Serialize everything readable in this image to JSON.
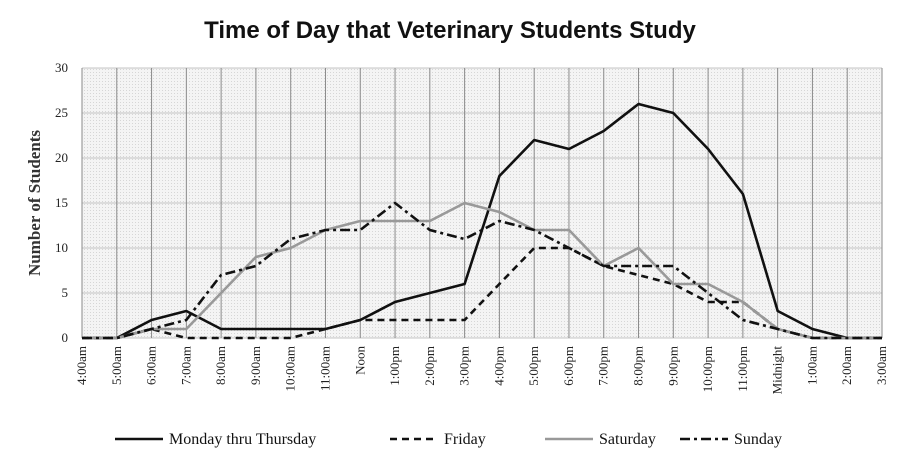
{
  "chart_data": {
    "type": "line",
    "title": "Time of Day that Veterinary Students Study",
    "xlabel": "",
    "ylabel": "Number of Students",
    "ylim": [
      0,
      30
    ],
    "yticks": [
      0,
      5,
      10,
      15,
      20,
      25,
      30
    ],
    "grid": true,
    "legend_position": "bottom",
    "x": [
      "4:00am",
      "5:00am",
      "6:00am",
      "7:00am",
      "8:00am",
      "9:00am",
      "10:00am",
      "11:00am",
      "Noon",
      "1:00pm",
      "2:00pm",
      "3:00pm",
      "4:00pm",
      "5:00pm",
      "6:00pm",
      "7:00pm",
      "8:00pm",
      "9:00pm",
      "10:00pm",
      "11:00pm",
      "Midnight",
      "1:00am",
      "2:00am",
      "3:00am"
    ],
    "series": [
      {
        "name": "Monday thru Thursday",
        "color": "#111111",
        "style": "solid",
        "values": [
          0,
          0,
          2,
          3,
          1,
          1,
          1,
          1,
          2,
          4,
          5,
          6,
          18,
          22,
          21,
          23,
          26,
          25,
          21,
          16,
          3,
          1,
          0,
          0
        ]
      },
      {
        "name": "Friday",
        "color": "#111111",
        "style": "dashed",
        "values": [
          0,
          0,
          1,
          0,
          0,
          0,
          0,
          1,
          2,
          2,
          2,
          2,
          6,
          10,
          10,
          8,
          7,
          6,
          4,
          4,
          1,
          0,
          0,
          0
        ]
      },
      {
        "name": "Saturday",
        "color": "#999999",
        "style": "solid",
        "values": [
          0,
          0,
          1,
          1,
          5,
          9,
          10,
          12,
          13,
          13,
          13,
          15,
          14,
          12,
          12,
          8,
          10,
          6,
          6,
          4,
          1,
          0,
          0,
          0
        ]
      },
      {
        "name": "Sunday",
        "color": "#111111",
        "style": "dashdot",
        "values": [
          0,
          0,
          1,
          2,
          7,
          8,
          11,
          12,
          12,
          15,
          12,
          11,
          13,
          12,
          10,
          8,
          8,
          8,
          5,
          2,
          1,
          0,
          0,
          0
        ]
      }
    ]
  }
}
